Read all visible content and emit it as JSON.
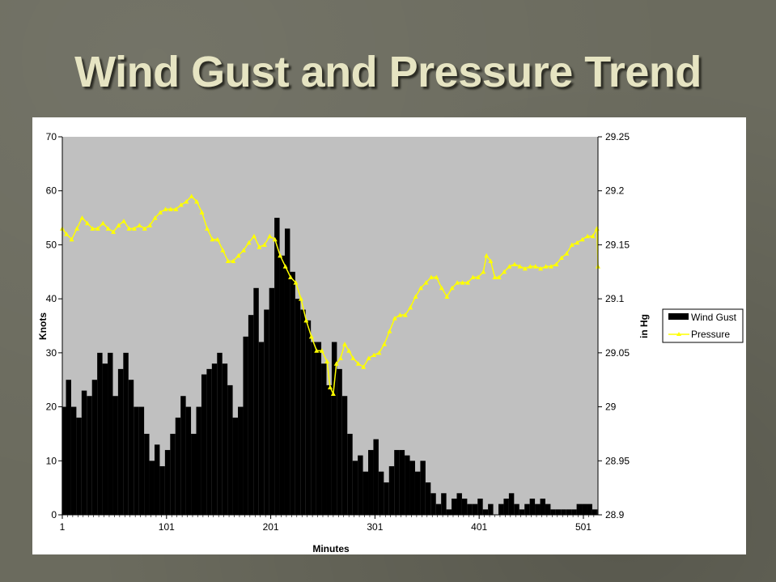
{
  "slide": {
    "title": "Wind Gust and Pressure Trend"
  },
  "colors": {
    "plot_bg": "#c0c0c0",
    "bar": "#000000",
    "pressure": "#ffff00",
    "panel": "#ffffff"
  },
  "chart_data": {
    "type": "bar-line",
    "title": "Wind Gust and Pressure Trend",
    "xlabel": "Minutes",
    "ylabel_left": "Knots",
    "ylabel_right": "in Hg",
    "xlim": [
      1,
      515
    ],
    "x_ticks": [
      1,
      101,
      201,
      301,
      401,
      501
    ],
    "ylim_left": [
      0,
      70
    ],
    "y_ticks_left": [
      0,
      10,
      20,
      30,
      40,
      50,
      60,
      70
    ],
    "ylim_right": [
      28.9,
      29.25
    ],
    "y_ticks_right": [
      "28.9",
      "28.95",
      "29",
      "29.05",
      "29.1",
      "29.15",
      "29.2",
      "29.25"
    ],
    "grid": false,
    "legend_position": "right",
    "series": [
      {
        "name": "Wind Gust",
        "type": "bar",
        "axis": "left",
        "points": [
          [
            1,
            20
          ],
          [
            5,
            25
          ],
          [
            10,
            20
          ],
          [
            15,
            18
          ],
          [
            20,
            23
          ],
          [
            25,
            22
          ],
          [
            30,
            25
          ],
          [
            35,
            30
          ],
          [
            40,
            28
          ],
          [
            45,
            30
          ],
          [
            50,
            22
          ],
          [
            55,
            27
          ],
          [
            60,
            30
          ],
          [
            65,
            25
          ],
          [
            70,
            20
          ],
          [
            75,
            20
          ],
          [
            80,
            15
          ],
          [
            85,
            10
          ],
          [
            90,
            13
          ],
          [
            95,
            9
          ],
          [
            100,
            12
          ],
          [
            105,
            15
          ],
          [
            110,
            18
          ],
          [
            115,
            22
          ],
          [
            120,
            20
          ],
          [
            125,
            15
          ],
          [
            130,
            20
          ],
          [
            135,
            26
          ],
          [
            140,
            27
          ],
          [
            145,
            28
          ],
          [
            150,
            30
          ],
          [
            155,
            28
          ],
          [
            160,
            24
          ],
          [
            165,
            18
          ],
          [
            170,
            20
          ],
          [
            175,
            33
          ],
          [
            180,
            37
          ],
          [
            185,
            42
          ],
          [
            190,
            32
          ],
          [
            195,
            38
          ],
          [
            200,
            42
          ],
          [
            205,
            55
          ],
          [
            210,
            48
          ],
          [
            215,
            53
          ],
          [
            220,
            45
          ],
          [
            225,
            40
          ],
          [
            230,
            38
          ],
          [
            235,
            36
          ],
          [
            240,
            32
          ],
          [
            245,
            32
          ],
          [
            250,
            28
          ],
          [
            255,
            24
          ],
          [
            260,
            32
          ],
          [
            265,
            27
          ],
          [
            270,
            22
          ],
          [
            275,
            15
          ],
          [
            280,
            10
          ],
          [
            285,
            11
          ],
          [
            290,
            8
          ],
          [
            295,
            12
          ],
          [
            300,
            14
          ],
          [
            305,
            8
          ],
          [
            310,
            6
          ],
          [
            315,
            9
          ],
          [
            320,
            12
          ],
          [
            325,
            12
          ],
          [
            330,
            11
          ],
          [
            335,
            10
          ],
          [
            340,
            8
          ],
          [
            345,
            10
          ],
          [
            350,
            6
          ],
          [
            355,
            4
          ],
          [
            360,
            2
          ],
          [
            365,
            4
          ],
          [
            370,
            1
          ],
          [
            375,
            3
          ],
          [
            380,
            4
          ],
          [
            385,
            3
          ],
          [
            390,
            2
          ],
          [
            395,
            2
          ],
          [
            400,
            3
          ],
          [
            405,
            1
          ],
          [
            410,
            2
          ],
          [
            415,
            0
          ],
          [
            420,
            2
          ],
          [
            425,
            3
          ],
          [
            430,
            4
          ],
          [
            435,
            2
          ],
          [
            440,
            1
          ],
          [
            445,
            2
          ],
          [
            450,
            3
          ],
          [
            455,
            2
          ],
          [
            460,
            3
          ],
          [
            465,
            2
          ],
          [
            470,
            1
          ],
          [
            475,
            1
          ],
          [
            480,
            1
          ],
          [
            485,
            1
          ],
          [
            490,
            1
          ],
          [
            495,
            2
          ],
          [
            500,
            2
          ],
          [
            505,
            2
          ],
          [
            510,
            1
          ],
          [
            514,
            1
          ]
        ]
      },
      {
        "name": "Pressure",
        "type": "line",
        "axis": "right",
        "points": [
          [
            1,
            29.165
          ],
          [
            5,
            29.16
          ],
          [
            10,
            29.155
          ],
          [
            15,
            29.165
          ],
          [
            20,
            29.175
          ],
          [
            25,
            29.17
          ],
          [
            30,
            29.165
          ],
          [
            35,
            29.165
          ],
          [
            40,
            29.17
          ],
          [
            45,
            29.165
          ],
          [
            50,
            29.162
          ],
          [
            55,
            29.168
          ],
          [
            60,
            29.172
          ],
          [
            65,
            29.165
          ],
          [
            70,
            29.165
          ],
          [
            75,
            29.168
          ],
          [
            80,
            29.165
          ],
          [
            85,
            29.168
          ],
          [
            90,
            29.175
          ],
          [
            95,
            29.18
          ],
          [
            100,
            29.183
          ],
          [
            105,
            29.183
          ],
          [
            110,
            29.183
          ],
          [
            115,
            29.187
          ],
          [
            120,
            29.19
          ],
          [
            125,
            29.195
          ],
          [
            130,
            29.19
          ],
          [
            135,
            29.18
          ],
          [
            140,
            29.165
          ],
          [
            145,
            29.155
          ],
          [
            150,
            29.155
          ],
          [
            155,
            29.145
          ],
          [
            160,
            29.135
          ],
          [
            165,
            29.135
          ],
          [
            170,
            29.14
          ],
          [
            175,
            29.145
          ],
          [
            180,
            29.152
          ],
          [
            185,
            29.158
          ],
          [
            190,
            29.148
          ],
          [
            195,
            29.15
          ],
          [
            200,
            29.158
          ],
          [
            205,
            29.155
          ],
          [
            210,
            29.14
          ],
          [
            215,
            29.13
          ],
          [
            220,
            29.12
          ],
          [
            225,
            29.115
          ],
          [
            230,
            29.1
          ],
          [
            235,
            29.08
          ],
          [
            240,
            29.065
          ],
          [
            245,
            29.052
          ],
          [
            250,
            29.052
          ],
          [
            255,
            29.042
          ],
          [
            258,
            29.018
          ],
          [
            261,
            29.012
          ],
          [
            264,
            29.04
          ],
          [
            268,
            29.045
          ],
          [
            272,
            29.058
          ],
          [
            276,
            29.052
          ],
          [
            280,
            29.045
          ],
          [
            285,
            29.04
          ],
          [
            290,
            29.037
          ],
          [
            295,
            29.045
          ],
          [
            300,
            29.048
          ],
          [
            305,
            29.05
          ],
          [
            310,
            29.058
          ],
          [
            315,
            29.07
          ],
          [
            320,
            29.082
          ],
          [
            325,
            29.085
          ],
          [
            330,
            29.085
          ],
          [
            335,
            29.092
          ],
          [
            340,
            29.102
          ],
          [
            345,
            29.11
          ],
          [
            350,
            29.115
          ],
          [
            355,
            29.12
          ],
          [
            360,
            29.12
          ],
          [
            365,
            29.11
          ],
          [
            370,
            29.102
          ],
          [
            375,
            29.11
          ],
          [
            380,
            29.115
          ],
          [
            385,
            29.115
          ],
          [
            390,
            29.115
          ],
          [
            395,
            29.12
          ],
          [
            400,
            29.12
          ],
          [
            405,
            29.125
          ],
          [
            408,
            29.14
          ],
          [
            412,
            29.135
          ],
          [
            416,
            29.12
          ],
          [
            420,
            29.12
          ],
          [
            425,
            29.125
          ],
          [
            430,
            29.13
          ],
          [
            435,
            29.132
          ],
          [
            440,
            29.13
          ],
          [
            445,
            29.128
          ],
          [
            450,
            29.13
          ],
          [
            455,
            29.13
          ],
          [
            460,
            29.128
          ],
          [
            465,
            29.13
          ],
          [
            470,
            29.13
          ],
          [
            475,
            29.132
          ],
          [
            480,
            29.138
          ],
          [
            485,
            29.142
          ],
          [
            490,
            29.15
          ],
          [
            495,
            29.152
          ],
          [
            500,
            29.155
          ],
          [
            505,
            29.158
          ],
          [
            510,
            29.158
          ],
          [
            514,
            29.165
          ],
          [
            515,
            29.13
          ]
        ]
      }
    ]
  }
}
